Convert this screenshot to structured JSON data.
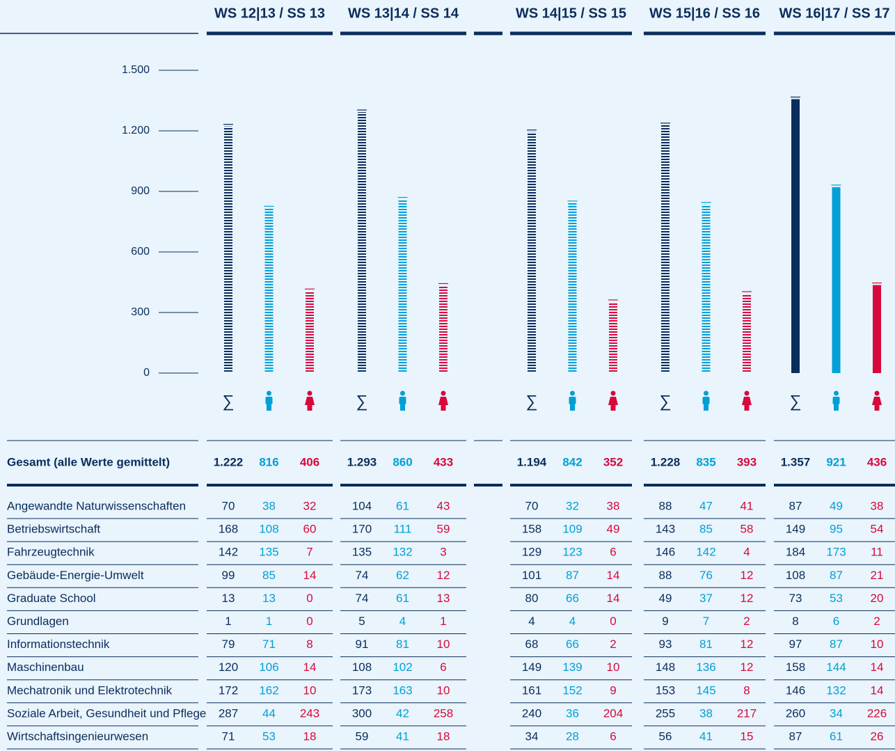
{
  "chart_data": {
    "type": "bar",
    "categories": [
      "WS 12|13 / SS 13",
      "WS 13|14 / SS 14",
      "WS 14|15 / SS 15",
      "WS 15|16 / SS 16",
      "WS 16|17 / SS 17"
    ],
    "series": [
      {
        "name": "∑",
        "color": "#0b2d5b",
        "values": [
          1222,
          1293,
          1194,
          1228,
          1357
        ],
        "value_labels": [
          "1.222",
          "1.293",
          "1.194",
          "1.228",
          "1.357"
        ]
      },
      {
        "color": "#00a0d6",
        "values": [
          816,
          860,
          842,
          835,
          921
        ]
      },
      {
        "color": "#d8083c",
        "values": [
          406,
          433,
          352,
          393,
          436
        ]
      }
    ],
    "ylim": [
      0,
      1500
    ],
    "yticks": [
      0,
      300,
      600,
      900,
      {
        "value": 1200,
        "label": "1.200"
      },
      {
        "value": 1500,
        "label": "1.500"
      }
    ]
  },
  "table": {
    "total_label": "Gesamt (alle Werte gemittelt)",
    "rows": [
      {
        "label": "Angewandte Naturwissenschaften",
        "values": [
          70,
          38,
          32,
          104,
          61,
          43,
          70,
          32,
          38,
          88,
          47,
          41,
          87,
          49,
          38
        ]
      },
      {
        "label": "Betriebswirtschaft",
        "values": [
          168,
          108,
          60,
          170,
          111,
          59,
          158,
          109,
          49,
          143,
          85,
          58,
          149,
          95,
          54
        ]
      },
      {
        "label": "Fahrzeugtechnik",
        "values": [
          142,
          135,
          7,
          135,
          132,
          3,
          129,
          123,
          6,
          146,
          142,
          4,
          184,
          173,
          11
        ]
      },
      {
        "label": "Gebäude-Energie-Umwelt",
        "values": [
          99,
          85,
          14,
          74,
          62,
          12,
          101,
          87,
          14,
          88,
          76,
          12,
          108,
          87,
          21
        ]
      },
      {
        "label": "Graduate School",
        "values": [
          13,
          13,
          0,
          74,
          61,
          13,
          80,
          66,
          14,
          49,
          37,
          12,
          73,
          53,
          20
        ]
      },
      {
        "label": "Grundlagen",
        "values": [
          1,
          1,
          0,
          5,
          4,
          1,
          4,
          4,
          0,
          9,
          7,
          2,
          8,
          6,
          2
        ]
      },
      {
        "label": "Informationstechnik",
        "values": [
          79,
          71,
          8,
          91,
          81,
          10,
          68,
          66,
          2,
          93,
          81,
          12,
          97,
          87,
          10
        ]
      },
      {
        "label": "Maschinenbau",
        "values": [
          120,
          106,
          14,
          108,
          102,
          6,
          149,
          139,
          10,
          148,
          136,
          12,
          158,
          144,
          14
        ]
      },
      {
        "label": "Mechatronik und Elektrotechnik",
        "values": [
          172,
          162,
          10,
          173,
          163,
          10,
          161,
          152,
          9,
          153,
          145,
          8,
          146,
          132,
          14
        ]
      },
      {
        "label": "Soziale Arbeit, Gesundheit und Pflege",
        "values": [
          287,
          44,
          243,
          300,
          42,
          258,
          240,
          36,
          204,
          255,
          38,
          217,
          260,
          34,
          226
        ]
      },
      {
        "label": "Wirtschaftsingenieurwesen",
        "values": [
          71,
          53,
          18,
          59,
          41,
          18,
          34,
          28,
          6,
          56,
          41,
          15,
          87,
          61,
          26
        ]
      }
    ]
  }
}
